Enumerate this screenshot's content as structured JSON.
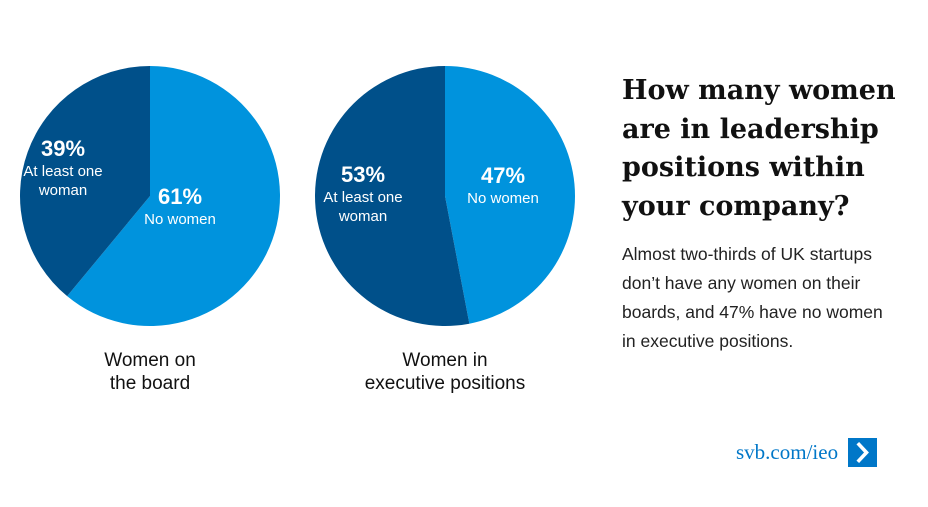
{
  "colors": {
    "dark": "#00508a",
    "light": "#0093dd",
    "link": "#0077c8"
  },
  "chart_data": [
    {
      "type": "pie",
      "title": "Women on the board",
      "title_lines": [
        "Women on",
        "the board"
      ],
      "slices": [
        {
          "name": "No women",
          "value": 61,
          "label": "61%",
          "color": "#0093dd"
        },
        {
          "name": "At least one woman",
          "value": 39,
          "label": "39%",
          "label_lines": [
            "At least one",
            "woman"
          ],
          "color": "#00508a"
        }
      ]
    },
    {
      "type": "pie",
      "title": "Women in executive positions",
      "title_lines": [
        "Women in",
        "executive positions"
      ],
      "slices": [
        {
          "name": "No women",
          "value": 47,
          "label": "47%",
          "color": "#0093dd"
        },
        {
          "name": "At least one woman",
          "value": 53,
          "label": "53%",
          "label_lines": [
            "At least one",
            "woman"
          ],
          "color": "#00508a"
        }
      ]
    }
  ],
  "headline": {
    "lines": [
      "How many women",
      "are in leadership",
      "positions within",
      "your company?"
    ]
  },
  "description": {
    "lines": [
      "Almost two-thirds of UK startups",
      "don’t have any women on their",
      "boards, and 47% have no women",
      "in executive positions."
    ]
  },
  "footer": {
    "link_text": "svb.com/ieo",
    "icon": "chevron-right-icon"
  }
}
